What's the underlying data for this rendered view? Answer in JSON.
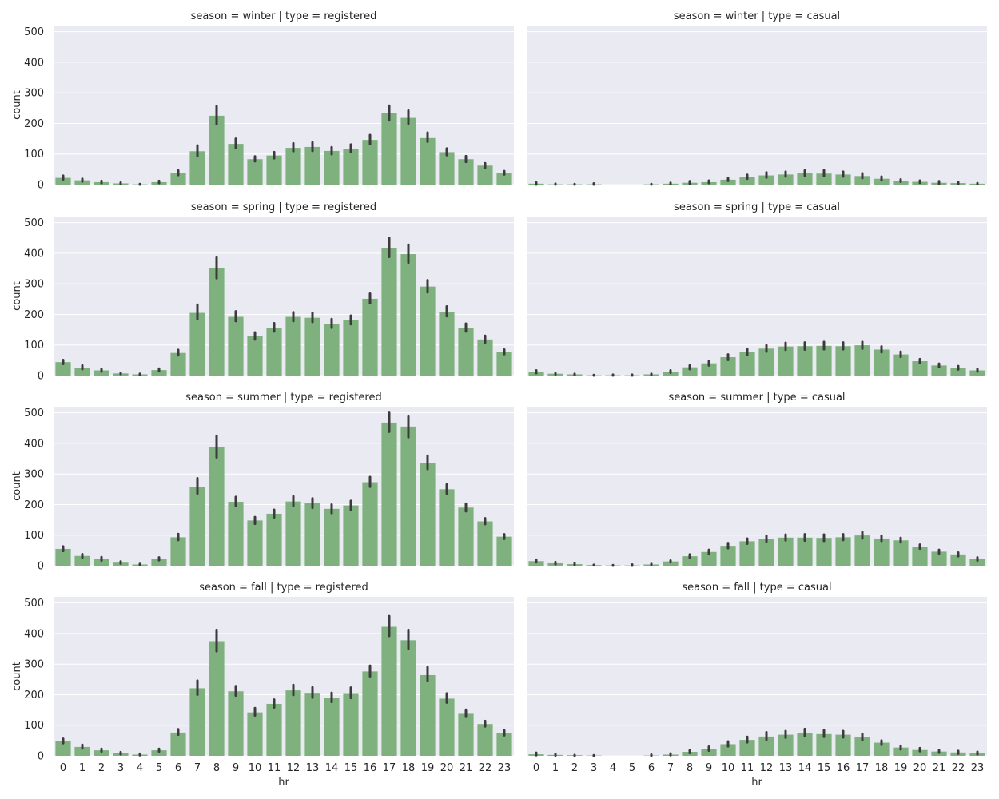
{
  "colors": {
    "bar": "#7fb17f",
    "panel_bg": "#eaeaf2",
    "grid": "#ffffff",
    "error_bar": "#3b3b3b"
  },
  "chart_data": [
    {
      "type": "bar",
      "title": "season = winter | type = registered",
      "xlabel": "",
      "ylabel": "count",
      "ylim": [
        0,
        520
      ],
      "categories": [
        "0",
        "1",
        "2",
        "3",
        "4",
        "5",
        "6",
        "7",
        "8",
        "9",
        "10",
        "11",
        "12",
        "13",
        "14",
        "15",
        "16",
        "17",
        "18",
        "19",
        "20",
        "21",
        "22",
        "23"
      ],
      "values": [
        22,
        14,
        8,
        4,
        1,
        8,
        38,
        109,
        225,
        133,
        83,
        95,
        120,
        123,
        110,
        117,
        146,
        234,
        218,
        152,
        106,
        83,
        62,
        38
      ],
      "error_low": [
        17,
        10,
        5,
        2,
        0,
        5,
        31,
        93,
        198,
        120,
        76,
        86,
        109,
        110,
        99,
        106,
        132,
        210,
        199,
        140,
        96,
        74,
        55,
        33
      ],
      "error_high": [
        29,
        19,
        12,
        7,
        2,
        12,
        46,
        128,
        256,
        150,
        92,
        106,
        135,
        138,
        122,
        131,
        162,
        258,
        242,
        170,
        118,
        93,
        70,
        44
      ],
      "grid": true
    },
    {
      "type": "bar",
      "title": "season = winter | type = casual",
      "xlabel": "",
      "ylabel": "",
      "ylim": [
        0,
        520
      ],
      "categories": [
        "0",
        "1",
        "2",
        "3",
        "4",
        "5",
        "6",
        "7",
        "8",
        "9",
        "10",
        "11",
        "12",
        "13",
        "14",
        "15",
        "16",
        "17",
        "18",
        "19",
        "20",
        "21",
        "22",
        "23"
      ],
      "values": [
        3,
        1,
        1,
        1,
        0,
        0,
        1,
        3,
        6,
        8,
        16,
        25,
        30,
        33,
        37,
        36,
        33,
        28,
        19,
        12,
        9,
        6,
        5,
        3
      ],
      "error_low": [
        0,
        0,
        0,
        0,
        0,
        0,
        0,
        1,
        3,
        5,
        12,
        19,
        23,
        26,
        29,
        28,
        26,
        21,
        14,
        9,
        6,
        3,
        2,
        1
      ],
      "error_high": [
        7,
        3,
        2,
        4,
        0,
        0,
        2,
        6,
        11,
        13,
        21,
        32,
        40,
        42,
        46,
        47,
        42,
        37,
        26,
        17,
        13,
        11,
        8,
        5
      ],
      "grid": true
    },
    {
      "type": "bar",
      "title": "season = spring | type = registered",
      "xlabel": "",
      "ylabel": "count",
      "ylim": [
        0,
        520
      ],
      "categories": [
        "0",
        "1",
        "2",
        "3",
        "4",
        "5",
        "6",
        "7",
        "8",
        "9",
        "10",
        "11",
        "12",
        "13",
        "14",
        "15",
        "16",
        "17",
        "18",
        "19",
        "20",
        "21",
        "22",
        "23"
      ],
      "values": [
        44,
        26,
        17,
        7,
        4,
        18,
        74,
        205,
        352,
        192,
        128,
        156,
        192,
        189,
        169,
        181,
        251,
        417,
        397,
        291,
        208,
        156,
        118,
        77
      ],
      "error_low": [
        38,
        21,
        13,
        5,
        2,
        14,
        66,
        185,
        318,
        178,
        118,
        144,
        178,
        175,
        156,
        168,
        236,
        388,
        369,
        272,
        194,
        144,
        108,
        70
      ],
      "error_high": [
        51,
        33,
        22,
        9,
        6,
        23,
        84,
        232,
        386,
        210,
        141,
        171,
        207,
        205,
        185,
        196,
        268,
        450,
        428,
        312,
        226,
        170,
        130,
        85
      ],
      "grid": true
    },
    {
      "type": "bar",
      "title": "season = spring | type = casual",
      "xlabel": "",
      "ylabel": "",
      "ylim": [
        0,
        520
      ],
      "categories": [
        "0",
        "1",
        "2",
        "3",
        "4",
        "5",
        "6",
        "7",
        "8",
        "9",
        "10",
        "11",
        "12",
        "13",
        "14",
        "15",
        "16",
        "17",
        "18",
        "19",
        "20",
        "21",
        "22",
        "23"
      ],
      "values": [
        12,
        6,
        4,
        1,
        1,
        1,
        4,
        13,
        27,
        40,
        60,
        77,
        88,
        95,
        96,
        97,
        96,
        99,
        85,
        69,
        47,
        33,
        25,
        17
      ],
      "error_low": [
        8,
        4,
        2,
        0,
        0,
        0,
        2,
        9,
        21,
        33,
        51,
        68,
        78,
        84,
        85,
        86,
        86,
        88,
        76,
        61,
        41,
        28,
        20,
        13
      ],
      "error_high": [
        17,
        8,
        6,
        2,
        3,
        3,
        6,
        17,
        33,
        47,
        69,
        87,
        99,
        107,
        108,
        110,
        108,
        110,
        95,
        78,
        54,
        39,
        31,
        22
      ],
      "grid": true
    },
    {
      "type": "bar",
      "title": "season = summer | type = registered",
      "xlabel": "",
      "ylabel": "count",
      "ylim": [
        0,
        520
      ],
      "categories": [
        "0",
        "1",
        "2",
        "3",
        "4",
        "5",
        "6",
        "7",
        "8",
        "9",
        "10",
        "11",
        "12",
        "13",
        "14",
        "15",
        "16",
        "17",
        "18",
        "19",
        "20",
        "21",
        "22",
        "23"
      ],
      "values": [
        55,
        32,
        22,
        10,
        4,
        22,
        93,
        258,
        389,
        209,
        148,
        170,
        210,
        204,
        186,
        197,
        273,
        468,
        455,
        336,
        250,
        190,
        145,
        95
      ],
      "error_low": [
        48,
        26,
        17,
        7,
        2,
        18,
        84,
        236,
        354,
        195,
        137,
        158,
        196,
        189,
        172,
        183,
        258,
        438,
        420,
        316,
        236,
        178,
        136,
        88
      ],
      "error_high": [
        63,
        38,
        28,
        14,
        6,
        27,
        104,
        286,
        425,
        225,
        159,
        183,
        227,
        220,
        200,
        212,
        290,
        500,
        488,
        360,
        266,
        203,
        155,
        103
      ],
      "grid": true
    },
    {
      "type": "bar",
      "title": "season = summer | type = casual",
      "xlabel": "",
      "ylabel": "",
      "ylim": [
        0,
        520
      ],
      "categories": [
        "0",
        "1",
        "2",
        "3",
        "4",
        "5",
        "6",
        "7",
        "8",
        "9",
        "10",
        "11",
        "12",
        "13",
        "14",
        "15",
        "16",
        "17",
        "18",
        "19",
        "20",
        "21",
        "22",
        "23"
      ],
      "values": [
        15,
        8,
        5,
        2,
        1,
        1,
        4,
        14,
        31,
        45,
        65,
        80,
        88,
        92,
        92,
        91,
        93,
        99,
        89,
        83,
        62,
        46,
        37,
        22
      ],
      "error_low": [
        11,
        5,
        3,
        1,
        0,
        0,
        3,
        11,
        26,
        38,
        57,
        72,
        79,
        83,
        82,
        81,
        84,
        89,
        81,
        76,
        56,
        40,
        31,
        17
      ],
      "error_high": [
        20,
        12,
        8,
        3,
        2,
        4,
        6,
        17,
        37,
        52,
        74,
        89,
        98,
        102,
        103,
        102,
        103,
        110,
        98,
        91,
        69,
        52,
        43,
        27
      ],
      "grid": true
    },
    {
      "type": "bar",
      "title": "season = fall | type = registered",
      "xlabel": "hr",
      "ylabel": "count",
      "ylim": [
        0,
        520
      ],
      "categories": [
        "0",
        "1",
        "2",
        "3",
        "4",
        "5",
        "6",
        "7",
        "8",
        "9",
        "10",
        "11",
        "12",
        "13",
        "14",
        "15",
        "16",
        "17",
        "18",
        "19",
        "20",
        "21",
        "22",
        "23"
      ],
      "values": [
        48,
        29,
        18,
        8,
        4,
        18,
        76,
        221,
        375,
        211,
        142,
        170,
        214,
        206,
        190,
        205,
        276,
        422,
        378,
        264,
        187,
        140,
        104,
        74
      ],
      "error_low": [
        41,
        24,
        14,
        5,
        2,
        14,
        69,
        200,
        342,
        197,
        132,
        158,
        199,
        190,
        176,
        189,
        260,
        392,
        350,
        246,
        174,
        130,
        96,
        67
      ],
      "error_high": [
        56,
        36,
        23,
        12,
        7,
        23,
        87,
        246,
        412,
        228,
        156,
        184,
        232,
        224,
        206,
        223,
        295,
        457,
        412,
        290,
        204,
        151,
        114,
        83
      ],
      "grid": true
    },
    {
      "type": "bar",
      "title": "season = fall | type = casual",
      "xlabel": "hr",
      "ylabel": "",
      "ylim": [
        0,
        520
      ],
      "categories": [
        "0",
        "1",
        "2",
        "3",
        "4",
        "5",
        "6",
        "7",
        "8",
        "9",
        "10",
        "11",
        "12",
        "13",
        "14",
        "15",
        "16",
        "17",
        "18",
        "19",
        "20",
        "21",
        "22",
        "23"
      ],
      "values": [
        5,
        3,
        2,
        1,
        0,
        0,
        1,
        4,
        13,
        23,
        38,
        52,
        63,
        69,
        75,
        71,
        69,
        60,
        43,
        27,
        19,
        14,
        11,
        8
      ],
      "error_low": [
        2,
        1,
        0,
        0,
        0,
        0,
        0,
        2,
        9,
        17,
        31,
        44,
        53,
        59,
        64,
        62,
        60,
        51,
        36,
        21,
        15,
        10,
        7,
        5
      ],
      "error_high": [
        10,
        6,
        3,
        2,
        0,
        0,
        4,
        8,
        18,
        30,
        47,
        62,
        77,
        81,
        88,
        84,
        81,
        72,
        50,
        33,
        25,
        18,
        16,
        13
      ],
      "grid": true
    }
  ]
}
